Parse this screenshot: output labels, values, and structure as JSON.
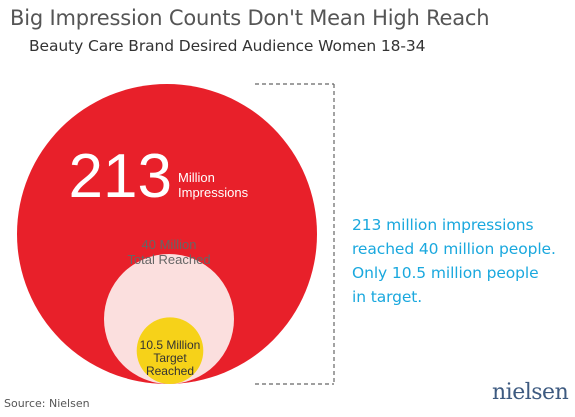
{
  "title": "Big Impression Counts Don't Mean High Reach",
  "subtitle": "Beauty Care Brand Desired Audience Women 18-34",
  "chart_data": {
    "type": "nested-circles",
    "series": [
      {
        "value": 213,
        "label_big": "213",
        "label": "Million\nImpressions",
        "color": "#e8202a"
      },
      {
        "value": 40,
        "label": "40 Million\nTotal Reached",
        "color": "#fbdfde"
      },
      {
        "value": 10.5,
        "label": "10.5 Million\nTarget\nReached",
        "color": "#f6d219"
      }
    ]
  },
  "callout": [
    "213 million impressions",
    "reached 40 million people.",
    "Only 10.5 million people",
    "in target."
  ],
  "source": "Source: Nielsen",
  "logo": "nielsen"
}
